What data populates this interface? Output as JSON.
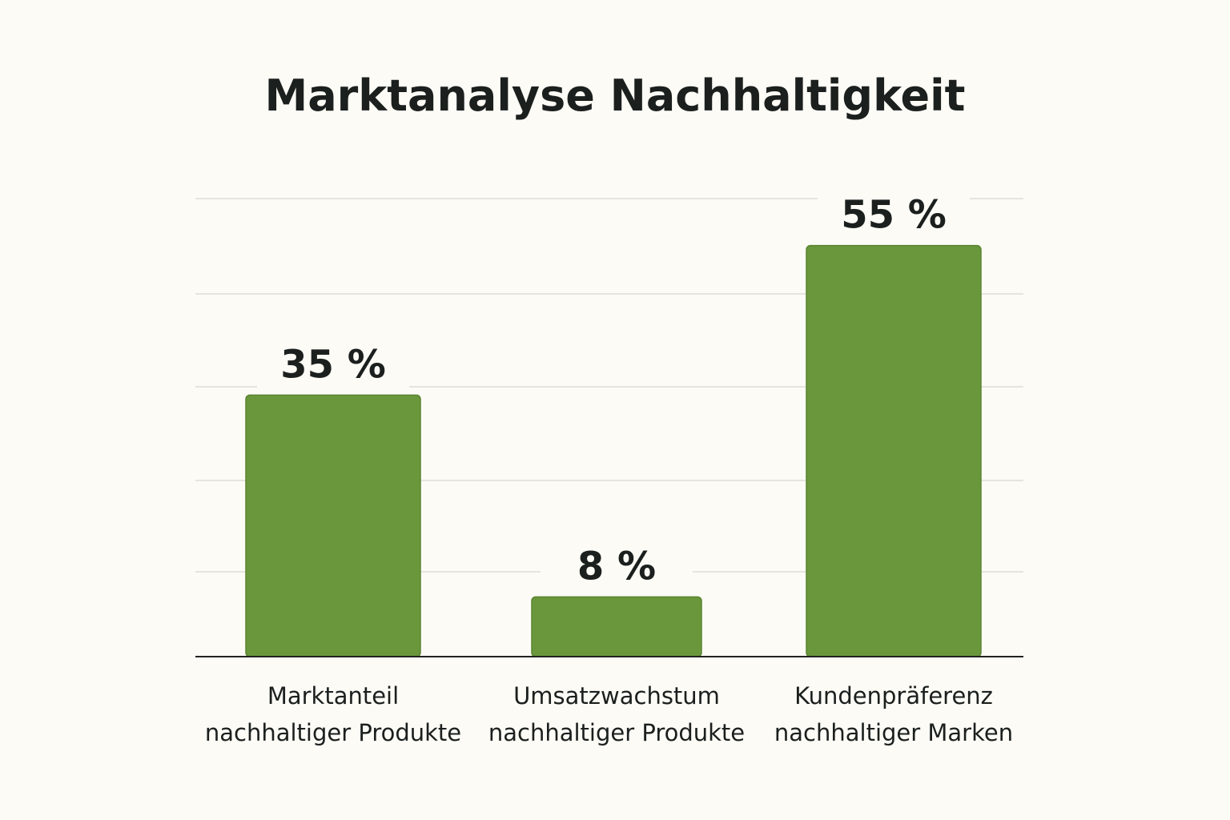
{
  "chart_data": {
    "type": "bar",
    "title": "Marktanalyse Nachhaltigkeit",
    "categories": [
      [
        "Marktanteil",
        "nachhaltiger Produkte"
      ],
      [
        "Umsatzwachstum",
        "nachhaltiger Produkte"
      ],
      [
        "Kundenpräferenz",
        "nachhaltiger Marken"
      ]
    ],
    "values": [
      35,
      8,
      55
    ],
    "value_labels": [
      "35 %",
      "8 %",
      "55 %"
    ],
    "unit": "%",
    "xlabel": "",
    "ylabel": "",
    "ylim": [
      0,
      60
    ],
    "grid": true,
    "legend": "none",
    "colors": {
      "bar": "#6a973b",
      "bar_border": "#5a8530",
      "grid": "#dddcd6",
      "axis": "#222222",
      "background": "#fcfbf6"
    }
  }
}
